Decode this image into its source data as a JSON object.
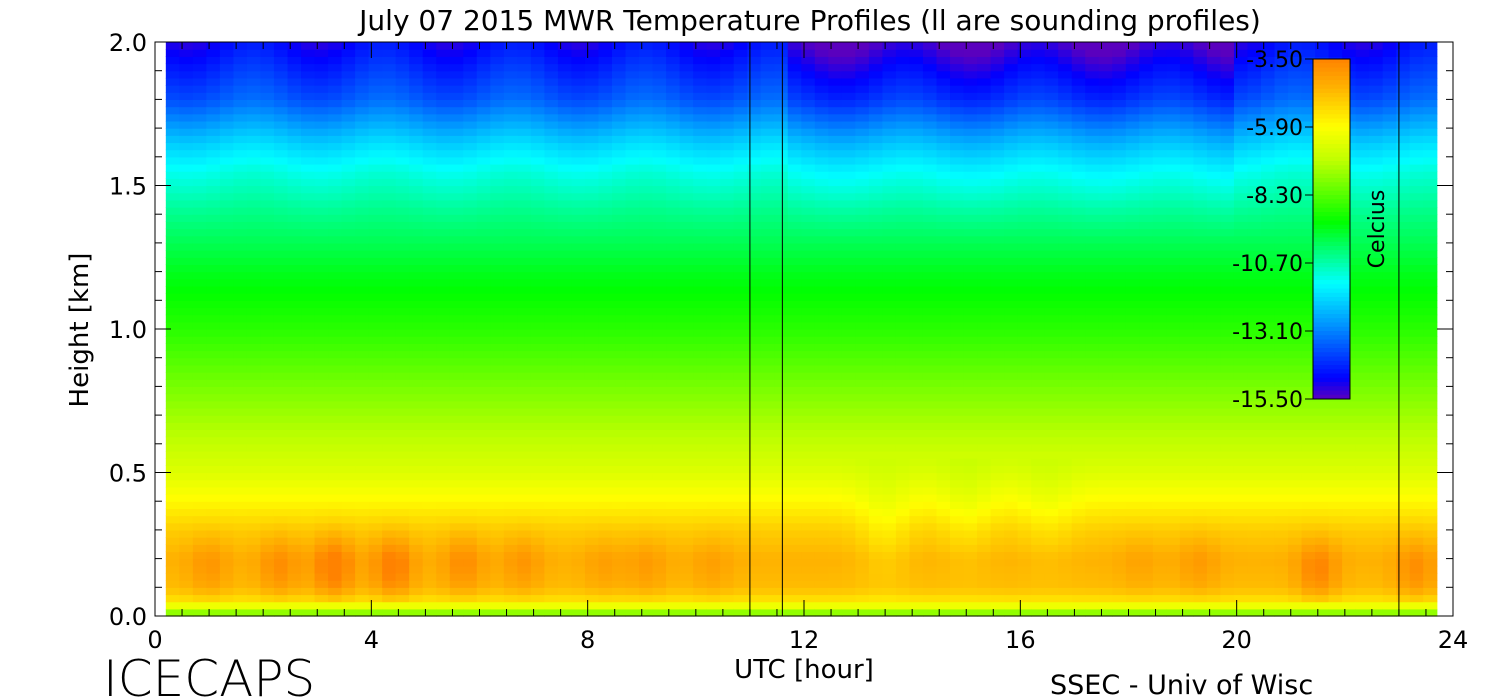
{
  "chart_data": {
    "type": "heatmap",
    "title": "July 07 2015 MWR Temperature Profiles (ll are sounding profiles)",
    "xlabel": "UTC [hour]",
    "ylabel": "Height [km]",
    "xlim": [
      0,
      24
    ],
    "ylim": [
      0.0,
      2.0
    ],
    "xticks": [
      0,
      4,
      8,
      12,
      16,
      20,
      24
    ],
    "xtick_labels": [
      "0",
      "4",
      "8",
      "12",
      "16",
      "20",
      "24"
    ],
    "yticks": [
      0.0,
      0.5,
      1.0,
      1.5,
      2.0
    ],
    "ytick_labels": [
      "0.0",
      "0.5",
      "1.0",
      "1.5",
      "2.0"
    ],
    "data_range_x": [
      0.2,
      23.7
    ],
    "sounding_times": [
      11.0,
      11.6,
      23.0
    ],
    "colorbar": {
      "label": "Celcius",
      "ticks": [
        -3.5,
        -5.9,
        -8.3,
        -10.7,
        -13.1,
        -15.5
      ],
      "tick_labels": [
        "-3.50",
        "-5.90",
        "-8.30",
        "-10.70",
        "-13.10",
        "-15.50"
      ],
      "min": -15.5,
      "max": -3.5
    },
    "profile_heights_km": [
      0.0,
      0.05,
      0.1,
      0.2,
      0.3,
      0.4,
      0.5,
      0.6,
      0.8,
      1.0,
      1.2,
      1.4,
      1.55,
      1.65,
      1.8,
      2.0
    ],
    "profile_temps_c": [
      -8.3,
      -5.5,
      -4.7,
      -4.5,
      -5.0,
      -5.8,
      -6.5,
      -7.0,
      -7.9,
      -8.8,
      -9.5,
      -10.4,
      -11.2,
      -12.0,
      -13.6,
      -14.8
    ],
    "warm_anomalies": [
      {
        "time": 1.0,
        "height": 0.17,
        "delta": 0.6
      },
      {
        "time": 2.3,
        "height": 0.17,
        "delta": 0.8
      },
      {
        "time": 3.3,
        "height": 0.17,
        "delta": 1.3
      },
      {
        "time": 4.4,
        "height": 0.17,
        "delta": 1.2
      },
      {
        "time": 5.7,
        "height": 0.18,
        "delta": 0.8
      },
      {
        "time": 6.8,
        "height": 0.18,
        "delta": 0.6
      },
      {
        "time": 8.3,
        "height": 0.17,
        "delta": 0.4
      },
      {
        "time": 9.1,
        "height": 0.17,
        "delta": 0.5
      },
      {
        "time": 10.3,
        "height": 0.17,
        "delta": 0.4
      },
      {
        "time": 18.2,
        "height": 0.18,
        "delta": 0.3
      },
      {
        "time": 19.3,
        "height": 0.18,
        "delta": 0.5
      },
      {
        "time": 21.5,
        "height": 0.16,
        "delta": 1.0
      },
      {
        "time": 23.3,
        "height": 0.16,
        "delta": 0.8
      }
    ],
    "cool_anomalies": [
      {
        "time": 13.5,
        "height": 0.3,
        "delta": -0.6
      },
      {
        "time": 15.0,
        "height": 0.35,
        "delta": -0.5
      },
      {
        "time": 16.5,
        "height": 0.35,
        "delta": -0.4
      }
    ]
  },
  "footer": {
    "left_label": "ICECAPS",
    "right_label": "SSEC - Univ of Wisc"
  }
}
